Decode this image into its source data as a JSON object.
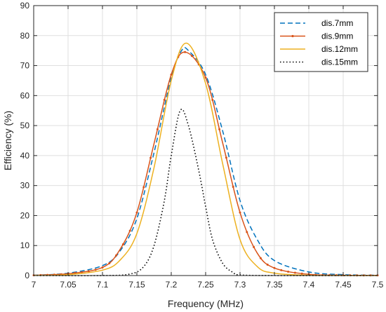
{
  "chart_data": {
    "type": "line",
    "title": "",
    "xlabel": "Frequency (MHz)",
    "ylabel": "Efficiency (%)",
    "xlim": [
      7,
      7.5
    ],
    "ylim": [
      0,
      90
    ],
    "grid": true,
    "legend_position": "top-right",
    "x_ticks": [
      "7",
      "7.05",
      "7.1",
      "7.15",
      "7.2",
      "7.25",
      "7.3",
      "7.35",
      "7.4",
      "7.45",
      "7.5"
    ],
    "y_ticks": [
      "0",
      "10",
      "20",
      "30",
      "40",
      "50",
      "60",
      "70",
      "80",
      "90"
    ],
    "series": [
      {
        "name": "dis.7mm",
        "color": "#0072BD",
        "style": "dashed",
        "marker": "none",
        "x": [
          7.0,
          7.05,
          7.1,
          7.125,
          7.15,
          7.175,
          7.2,
          7.215,
          7.225,
          7.25,
          7.275,
          7.3,
          7.325,
          7.35,
          7.4,
          7.45,
          7.5
        ],
        "y": [
          0.1,
          0.8,
          3.3,
          8,
          19,
          41,
          66,
          75,
          75,
          67,
          48,
          25,
          12,
          5,
          1.2,
          0.3,
          0.1
        ]
      },
      {
        "name": "dis.9mm",
        "color": "#D95319",
        "style": "solid",
        "marker": "dot",
        "x": [
          7.0,
          7.05,
          7.1,
          7.125,
          7.15,
          7.175,
          7.2,
          7.22,
          7.25,
          7.275,
          7.3,
          7.325,
          7.35,
          7.4,
          7.45,
          7.5
        ],
        "y": [
          0.1,
          0.6,
          2.7,
          8.5,
          21,
          44,
          67,
          74.5,
          66,
          44,
          21,
          7.5,
          2.5,
          0.4,
          0.1,
          0.05
        ]
      },
      {
        "name": "dis.12mm",
        "color": "#EDB120",
        "style": "solid",
        "marker": "none",
        "x": [
          7.0,
          7.05,
          7.1,
          7.125,
          7.15,
          7.175,
          7.2,
          7.222,
          7.25,
          7.275,
          7.3,
          7.325,
          7.35,
          7.4,
          7.45,
          7.5
        ],
        "y": [
          0.05,
          0.3,
          1.8,
          5,
          14,
          36,
          65,
          77.5,
          64,
          37,
          12,
          3,
          0.8,
          0.1,
          0.02,
          0.01
        ]
      },
      {
        "name": "dis.15mm",
        "color": "#000000",
        "style": "dotted",
        "marker": "none",
        "x": [
          7.0,
          7.1,
          7.14,
          7.16,
          7.175,
          7.19,
          7.2,
          7.213,
          7.225,
          7.24,
          7.25,
          7.26,
          7.275,
          7.29,
          7.3,
          7.35,
          7.5
        ],
        "y": [
          0,
          0,
          0.5,
          3,
          10,
          25,
          40,
          55,
          50,
          35,
          23,
          12,
          4,
          1,
          0.2,
          0,
          0
        ]
      }
    ]
  }
}
